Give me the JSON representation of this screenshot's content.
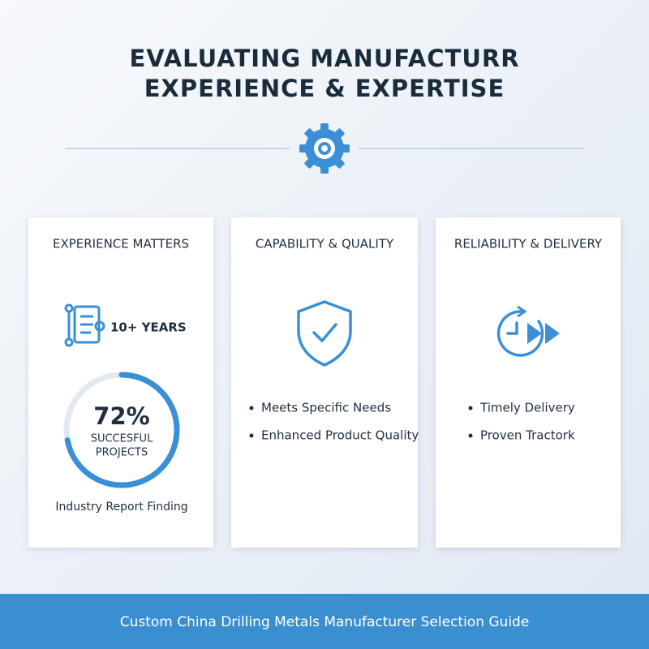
{
  "header": {
    "title_line1": "EVALUATING MANUFACTURR",
    "title_line2": "EXPERIENCE & EXPERTISE"
  },
  "cards": [
    {
      "title": "EXPERIENCE MATTERS",
      "years": "10+ YEARS",
      "stat": {
        "value": 72,
        "label": "72%"
      },
      "stat_caption_line1": "SUCCESFUL",
      "stat_caption_line2": "PROJECTS",
      "note": "Industry Report Finding"
    },
    {
      "title": "CAPABILITY & QUALITY",
      "bullets": [
        "Meets Specific Needs",
        "Enhanced Product Quality"
      ]
    },
    {
      "title": "RELIABILITY & DELIVERY",
      "bullets": [
        "Timely Delivery",
        "Proven Tractork"
      ]
    }
  ],
  "footer": {
    "text": "Custom China Drilling Metals Manufacturer Selection Guide"
  }
}
